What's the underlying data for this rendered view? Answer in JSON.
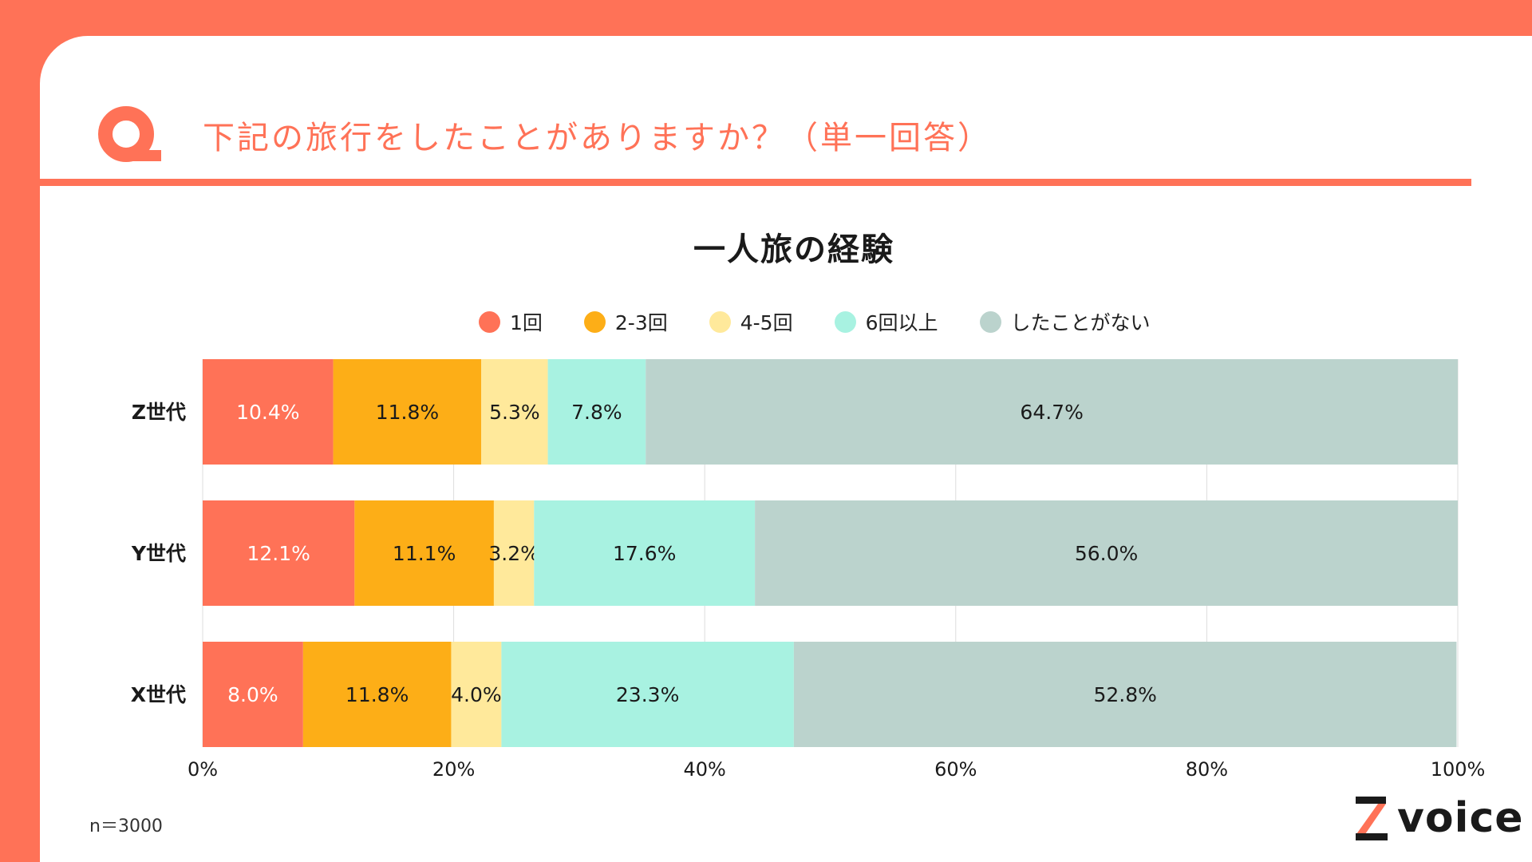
{
  "header": {
    "question": "下記の旅行をしたことがありますか？（単一回答）"
  },
  "colors": {
    "accent": "#FF7257",
    "series": [
      "#FF7257",
      "#FDAE17",
      "#FFE99B",
      "#A8F2E1",
      "#BBD3CD"
    ]
  },
  "chart_data": {
    "type": "bar",
    "orientation": "horizontal",
    "stacked": true,
    "title": "一人旅の経験",
    "categories": [
      "Z世代",
      "Y世代",
      "X世代"
    ],
    "series": [
      {
        "name": "1回",
        "values": [
          10.4,
          12.1,
          8.0
        ],
        "labels": [
          "10.4%",
          "12.1%",
          "8.0%"
        ]
      },
      {
        "name": "2-3回",
        "values": [
          11.8,
          11.1,
          11.8
        ],
        "labels": [
          "11.8%",
          "11.1%",
          "11.8%"
        ]
      },
      {
        "name": "4-5回",
        "values": [
          5.3,
          3.2,
          4.0
        ],
        "labels": [
          "5.3%",
          "3.2%",
          "4.0%"
        ]
      },
      {
        "name": "6回以上",
        "values": [
          7.8,
          17.6,
          23.3
        ],
        "labels": [
          "7.8%",
          "17.6%",
          "23.3%"
        ]
      },
      {
        "name": "したことがない",
        "values": [
          64.7,
          56.0,
          52.8
        ],
        "labels": [
          "64.7%",
          "56.0%",
          "52.8%"
        ]
      }
    ],
    "xlim": [
      0,
      100
    ],
    "xticks": [
      "0%",
      "20%",
      "40%",
      "60%",
      "80%",
      "100%"
    ],
    "grid": true,
    "legend": "top-center"
  },
  "footer": {
    "sample_size": "n＝3000",
    "logo_text": "voice",
    "logo_mark": "Z"
  }
}
